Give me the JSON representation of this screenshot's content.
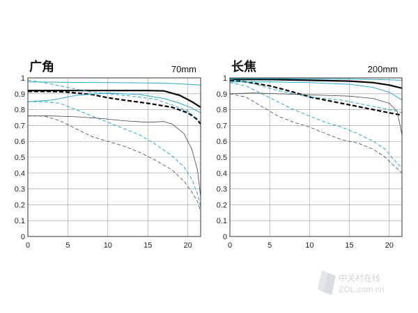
{
  "watermark": {
    "line1": "中关村在线",
    "line2": "ZOL.com.cn"
  },
  "chart_data": [
    {
      "type": "line",
      "title": "广角",
      "focal_length": "70mm",
      "xlabel": "",
      "ylabel": "",
      "xlim": [
        0,
        21.6
      ],
      "ylim": [
        0,
        1
      ],
      "x_ticks": [
        0,
        5,
        10,
        15,
        20
      ],
      "y_ticks": [
        0,
        0.1,
        0.2,
        0.3,
        0.4,
        0.5,
        0.6,
        0.7,
        0.8,
        0.9,
        1
      ],
      "y_tick_labels": [
        "0",
        "0.1",
        "0.2",
        "0.3",
        "0.4",
        "0.5",
        "0.6",
        "0.7",
        "0.8",
        "0.9",
        "1"
      ],
      "grid": true,
      "legend": "none",
      "series": [
        {
          "color": "#000000",
          "style": "solid",
          "weight": "bold",
          "x": [
            0,
            5,
            10,
            15,
            17,
            19,
            20.5,
            21.6
          ],
          "y": [
            0.92,
            0.92,
            0.92,
            0.92,
            0.918,
            0.89,
            0.85,
            0.815
          ]
        },
        {
          "color": "#000000",
          "style": "dashed",
          "weight": "bold",
          "x": [
            0,
            3,
            5,
            8,
            10,
            12,
            15,
            18,
            20,
            21,
            21.6
          ],
          "y": [
            0.915,
            0.915,
            0.91,
            0.895,
            0.875,
            0.86,
            0.84,
            0.815,
            0.78,
            0.745,
            0.71
          ]
        },
        {
          "color": "#29a8c8",
          "style": "solid",
          "weight": "normal",
          "x": [
            0,
            5,
            10,
            15,
            18,
            20,
            21.6
          ],
          "y": [
            0.975,
            0.972,
            0.97,
            0.968,
            0.965,
            0.96,
            0.955
          ]
        },
        {
          "color": "#29a8c8",
          "style": "solid",
          "weight": "normal",
          "x": [
            0,
            3,
            6,
            10,
            14,
            17,
            19,
            20.5,
            21.6
          ],
          "y": [
            0.85,
            0.86,
            0.89,
            0.905,
            0.895,
            0.87,
            0.84,
            0.81,
            0.78
          ]
        },
        {
          "color": "#29a8c8",
          "style": "dashed",
          "weight": "normal",
          "x": [
            0,
            2,
            4,
            6,
            8,
            10,
            13,
            16,
            18,
            20,
            21,
            21.6
          ],
          "y": [
            0.985,
            0.97,
            0.95,
            0.93,
            0.91,
            0.9,
            0.885,
            0.865,
            0.83,
            0.79,
            0.75,
            0.73
          ]
        },
        {
          "color": "#29a8c8",
          "style": "dashed",
          "weight": "normal",
          "x": [
            0,
            2,
            4,
            6,
            8,
            10,
            12,
            14,
            16,
            18,
            19.5,
            20.5,
            21.2,
            21.6
          ],
          "y": [
            0.85,
            0.85,
            0.84,
            0.8,
            0.76,
            0.72,
            0.68,
            0.64,
            0.58,
            0.51,
            0.44,
            0.36,
            0.27,
            0.19
          ]
        },
        {
          "color": "#444444",
          "style": "solid",
          "weight": "thin",
          "x": [
            0,
            3,
            6,
            9,
            12,
            15,
            17,
            18,
            19.5,
            20.5,
            21.2,
            21.6
          ],
          "y": [
            0.76,
            0.76,
            0.755,
            0.745,
            0.73,
            0.72,
            0.725,
            0.71,
            0.65,
            0.55,
            0.42,
            0.25
          ]
        },
        {
          "color": "#444444",
          "style": "dashed",
          "weight": "thin",
          "x": [
            0,
            2,
            4,
            6,
            8,
            10,
            12,
            14,
            16,
            18,
            19.5,
            20.5,
            21.2,
            21.6
          ],
          "y": [
            0.76,
            0.76,
            0.73,
            0.68,
            0.63,
            0.6,
            0.57,
            0.53,
            0.48,
            0.42,
            0.35,
            0.28,
            0.22,
            0.16
          ]
        }
      ]
    },
    {
      "type": "line",
      "title": "长焦",
      "focal_length": "200mm",
      "xlabel": "",
      "ylabel": "",
      "xlim": [
        0,
        21.6
      ],
      "ylim": [
        0,
        1
      ],
      "x_ticks": [
        0,
        5,
        10,
        15,
        20
      ],
      "y_ticks": [
        0,
        0.1,
        0.2,
        0.3,
        0.4,
        0.5,
        0.6,
        0.7,
        0.8,
        0.9,
        1
      ],
      "y_tick_labels": [
        "0",
        "0.1",
        "0.2",
        "0.3",
        "0.4",
        "0.5",
        "0.6",
        "0.7",
        "0.8",
        "0.9",
        "1"
      ],
      "grid": true,
      "legend": "none",
      "series": [
        {
          "color": "#000000",
          "style": "solid",
          "weight": "bold",
          "x": [
            0,
            5,
            10,
            15,
            18,
            20,
            21.6
          ],
          "y": [
            0.99,
            0.99,
            0.985,
            0.98,
            0.97,
            0.955,
            0.935
          ]
        },
        {
          "color": "#000000",
          "style": "dashed",
          "weight": "bold",
          "x": [
            0,
            2,
            5,
            8,
            10,
            13,
            16,
            18,
            20,
            21.6
          ],
          "y": [
            0.985,
            0.975,
            0.95,
            0.91,
            0.88,
            0.85,
            0.82,
            0.8,
            0.78,
            0.765
          ]
        },
        {
          "color": "#29a8c8",
          "style": "solid",
          "weight": "normal",
          "x": [
            0,
            5,
            10,
            15,
            18,
            20,
            21.6
          ],
          "y": [
            0.995,
            0.995,
            0.995,
            0.993,
            0.99,
            0.988,
            0.985
          ]
        },
        {
          "color": "#29a8c8",
          "style": "solid",
          "weight": "normal",
          "x": [
            0,
            5,
            10,
            15,
            18,
            20,
            21,
            21.6
          ],
          "y": [
            0.975,
            0.975,
            0.97,
            0.96,
            0.94,
            0.91,
            0.88,
            0.86
          ]
        },
        {
          "color": "#29a8c8",
          "style": "dashed",
          "weight": "normal",
          "x": [
            0,
            2,
            4,
            6,
            8,
            10,
            12,
            14,
            16,
            18,
            20,
            21,
            21.6
          ],
          "y": [
            0.99,
            0.975,
            0.95,
            0.92,
            0.9,
            0.88,
            0.87,
            0.86,
            0.84,
            0.82,
            0.8,
            0.79,
            0.78
          ]
        },
        {
          "color": "#29a8c8",
          "style": "dashed",
          "weight": "normal",
          "x": [
            0,
            2,
            4,
            6,
            8,
            10,
            12,
            14,
            16,
            18,
            19.5,
            20.5,
            21.6
          ],
          "y": [
            0.97,
            0.95,
            0.9,
            0.85,
            0.8,
            0.76,
            0.72,
            0.69,
            0.65,
            0.6,
            0.55,
            0.49,
            0.43
          ]
        },
        {
          "color": "#444444",
          "style": "solid",
          "weight": "thin",
          "x": [
            0,
            3,
            6,
            9,
            12,
            15,
            18,
            20,
            21,
            21.6
          ],
          "y": [
            0.9,
            0.905,
            0.9,
            0.895,
            0.89,
            0.885,
            0.87,
            0.84,
            0.79,
            0.64
          ]
        },
        {
          "color": "#444444",
          "style": "dashed",
          "weight": "thin",
          "x": [
            0,
            2,
            4,
            6,
            8,
            10,
            12,
            14,
            16,
            18,
            19.5,
            20.5,
            21.6
          ],
          "y": [
            0.9,
            0.88,
            0.82,
            0.76,
            0.72,
            0.69,
            0.65,
            0.61,
            0.59,
            0.55,
            0.5,
            0.45,
            0.4
          ]
        }
      ]
    }
  ]
}
